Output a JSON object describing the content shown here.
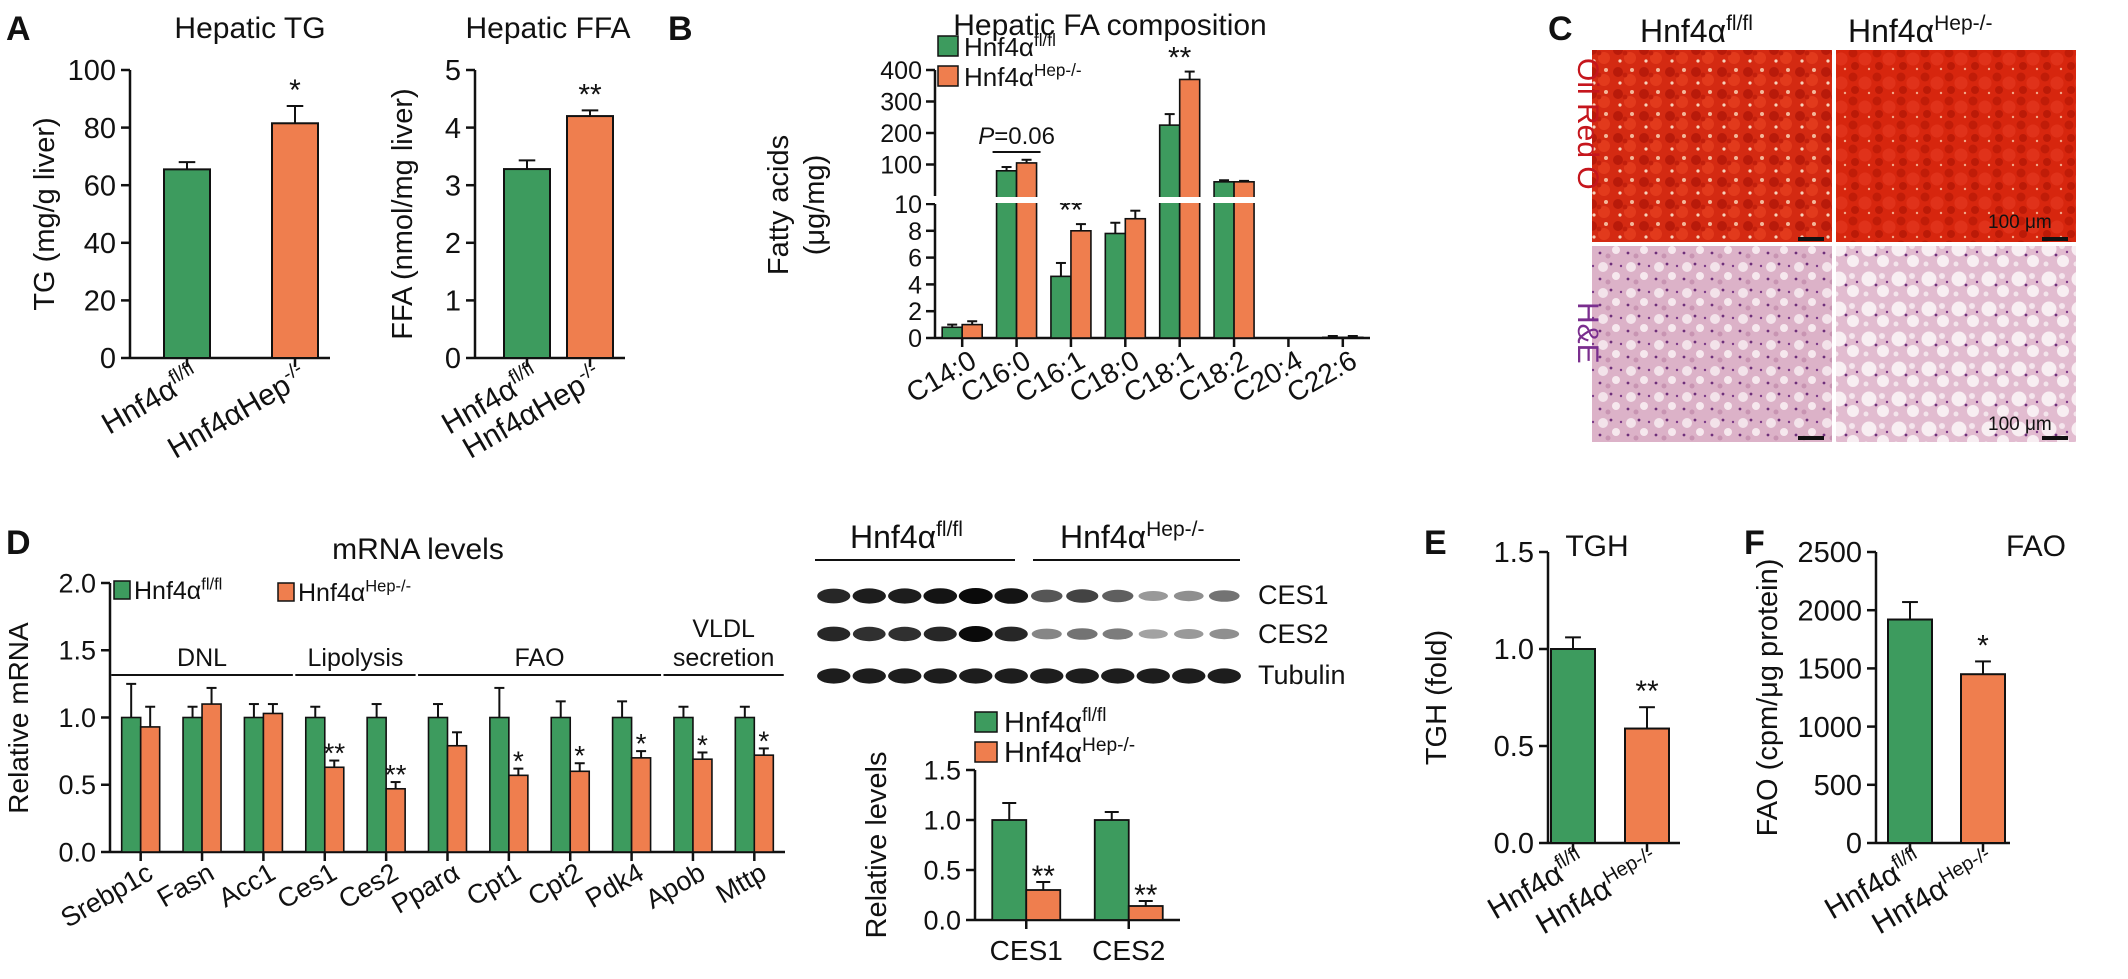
{
  "colors": {
    "green": "#3d9b5e",
    "orange": "#ef7e4e",
    "title": "#c5161d",
    "he_label": "#7a2e8e",
    "oil_red_bg": "#d1250f",
    "he_bg": "#e9c9d9"
  },
  "groups": {
    "control": {
      "base": "Hnf4α",
      "sup": "fl/fl"
    },
    "knockout": {
      "base": "Hnf4α",
      "sup": "Hep-/-"
    },
    "knockout_alt": {
      "base": "Hnf4αHep",
      "sup": "-/-"
    }
  },
  "panel_letters": {
    "a": "A",
    "b": "B",
    "c": "C",
    "d": "D",
    "e": "E",
    "f": "F"
  },
  "panel_c": {
    "labels": {
      "oil": "Oil Red O",
      "he": "H&E",
      "scale": "100 μm"
    }
  },
  "blot": {
    "bands": [
      "CES1",
      "CES2",
      "Tubulin"
    ],
    "intensities": [
      [
        0.85,
        0.9,
        0.9,
        0.95,
        1.0,
        0.95,
        0.6,
        0.7,
        0.55,
        0.25,
        0.3,
        0.45
      ],
      [
        0.85,
        0.8,
        0.8,
        0.85,
        1.0,
        0.85,
        0.35,
        0.45,
        0.4,
        0.2,
        0.25,
        0.3
      ],
      [
        0.9,
        0.9,
        0.9,
        0.9,
        0.9,
        0.9,
        0.9,
        0.9,
        0.9,
        0.9,
        0.9,
        0.9
      ]
    ]
  },
  "chart_data": [
    {
      "id": "A1",
      "type": "bar",
      "title": "Hepatic TG",
      "ylabel": "TG (mg/g liver)",
      "ylim": [
        0,
        100
      ],
      "yticks": [
        "0",
        "20",
        "40",
        "60",
        "80",
        "100"
      ],
      "values": [
        65.5,
        81.5
      ],
      "errors": [
        2.5,
        6
      ],
      "sig": [
        "",
        "*"
      ]
    },
    {
      "id": "A2",
      "type": "bar",
      "title": "Hepatic FFA",
      "ylabel": "FFA (nmol/mg liver)",
      "ylim": [
        0,
        5
      ],
      "yticks": [
        "0",
        "1",
        "2",
        "3",
        "4",
        "5"
      ],
      "values": [
        3.28,
        4.2
      ],
      "errors": [
        0.15,
        0.1
      ],
      "sig": [
        "",
        "**"
      ]
    },
    {
      "id": "B",
      "type": "bar",
      "title": "Hepatic FA composition",
      "ylabel": "Fatty acids",
      "ylabel2": "(μg/mg)",
      "categories": [
        "C14:0",
        "C16:0",
        "C16:1",
        "C18:0",
        "C18:1",
        "C18:2",
        "C20:4",
        "C22:6"
      ],
      "series": [
        {
          "values": [
            0.8,
            80,
            4.6,
            7.8,
            225,
            45,
            0,
            0.05
          ],
          "errors": [
            0.2,
            12,
            1.0,
            0.8,
            35,
            5,
            0,
            0.1
          ]
        },
        {
          "values": [
            1.0,
            105,
            8.0,
            8.9,
            370,
            45,
            0,
            0.05
          ],
          "errors": [
            0.25,
            10,
            0.5,
            0.6,
            25,
            3,
            0,
            0.1
          ]
        }
      ],
      "ylim_lower": [
        0,
        10
      ],
      "yticks_lower": [
        "0",
        "2",
        "4",
        "6",
        "8",
        "10"
      ],
      "ylim_upper": [
        0,
        400
      ],
      "yticks_upper": [
        "100",
        "200",
        "300",
        "400"
      ],
      "sig": [
        "",
        "",
        "**",
        "",
        "**",
        "",
        "",
        ""
      ],
      "annotation": {
        "italic": "P",
        "text": "=0.06",
        "category": "C16:0"
      }
    },
    {
      "id": "D",
      "type": "bar",
      "title": "mRNA levels",
      "ylabel": "Relative mRNA",
      "ylim": [
        0,
        2.0
      ],
      "yticks": [
        "0.0",
        "0.5",
        "1.0",
        "1.5",
        "2.0"
      ],
      "categories": [
        "Srebp1c",
        "Fasn",
        "Acc1",
        "Ces1",
        "Ces2",
        "Pparα",
        "Cpt1",
        "Cpt2",
        "Pdk4",
        "Apob",
        "Mttp"
      ],
      "series": [
        {
          "values": [
            1.0,
            1.0,
            1.0,
            1.0,
            1.0,
            1.0,
            1.0,
            1.0,
            1.0,
            1.0,
            1.0
          ],
          "errors": [
            0.25,
            0.08,
            0.1,
            0.08,
            0.1,
            0.1,
            0.22,
            0.12,
            0.12,
            0.08,
            0.08
          ]
        },
        {
          "values": [
            0.93,
            1.1,
            1.03,
            0.63,
            0.47,
            0.79,
            0.57,
            0.6,
            0.7,
            0.69,
            0.72
          ],
          "errors": [
            0.15,
            0.12,
            0.07,
            0.05,
            0.05,
            0.1,
            0.05,
            0.06,
            0.05,
            0.05,
            0.05
          ]
        }
      ],
      "sig": [
        "",
        "",
        "",
        "**",
        "**",
        "",
        "*",
        "*",
        "*",
        "*",
        "*"
      ],
      "categories_groups": [
        {
          "label": "DNL",
          "from": 0,
          "to": 2
        },
        {
          "label": "Lipolysis",
          "from": 3,
          "to": 4
        },
        {
          "label": "FAO",
          "from": 5,
          "to": 8
        },
        {
          "label": "VLDL",
          "label2": "secretion",
          "from": 9,
          "to": 10
        }
      ]
    },
    {
      "id": "D2",
      "type": "bar",
      "ylabel": "Relative levels",
      "ylim": [
        0,
        1.5
      ],
      "yticks": [
        "0.0",
        "0.5",
        "1.0",
        "1.5"
      ],
      "categories": [
        "CES1",
        "CES2"
      ],
      "series": [
        {
          "values": [
            1.0,
            1.0
          ],
          "errors": [
            0.17,
            0.08
          ]
        },
        {
          "values": [
            0.3,
            0.14
          ],
          "errors": [
            0.08,
            0.05
          ]
        }
      ],
      "sig": [
        "**",
        "**"
      ]
    },
    {
      "id": "E",
      "type": "bar",
      "title": "TGH",
      "ylabel": "TGH (fold)",
      "ylim": [
        0,
        1.5
      ],
      "yticks": [
        "0.0",
        "0.5",
        "1.0",
        "1.5"
      ],
      "values": [
        1.0,
        0.59
      ],
      "errors": [
        0.06,
        0.11
      ],
      "sig": [
        "",
        "**"
      ]
    },
    {
      "id": "F",
      "type": "bar",
      "title": "FAO",
      "ylabel": "FAO (cpm/μg protein)",
      "ylim": [
        0,
        2500
      ],
      "yticks": [
        "0",
        "500",
        "1000",
        "1500",
        "2000",
        "2500"
      ],
      "values": [
        1920,
        1450
      ],
      "errors": [
        150,
        110
      ],
      "sig": [
        "",
        "*"
      ]
    }
  ]
}
